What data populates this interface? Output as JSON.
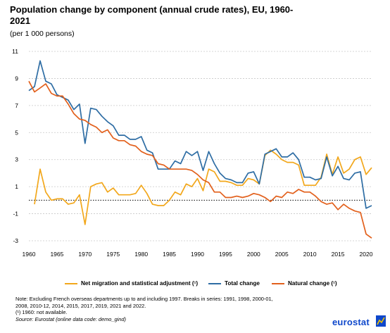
{
  "title": "Population change by component (annual crude rates), EU, 1960-2021",
  "subtitle": "(per 1 000 persons)",
  "notes": [
    "Note: Excluding French overseas departments up to and including 1997. Breaks in series: 1991, 1998, 2000-01,",
    "2008, 2010-12, 2014, 2015, 2017, 2019, 2021 and 2022.",
    "(¹) 1960: not available.",
    "Source: Eurostat (online data code: demo_gind)"
  ],
  "logo_text": "eurostat",
  "colors": {
    "net_migration": "#f2a71b",
    "total": "#2e6da4",
    "natural": "#e2601c",
    "grid": "#c8c8c8"
  },
  "chart_data": {
    "type": "line",
    "title": "Population change by component (annual crude rates), EU, 1960-2021",
    "ylabel": "(per 1 000 persons)",
    "xlim": [
      1960,
      2021
    ],
    "ylim": [
      -3,
      11
    ],
    "y_ticks": [
      -3,
      -1,
      1,
      3,
      5,
      7,
      9,
      11
    ],
    "x_ticks": [
      1960,
      1965,
      1970,
      1975,
      1980,
      1985,
      1990,
      1995,
      2000,
      2005,
      2010,
      2015,
      2020
    ],
    "grid": "horizontal dashed",
    "legend_position": "bottom",
    "x": [
      1960,
      1961,
      1962,
      1963,
      1964,
      1965,
      1966,
      1967,
      1968,
      1969,
      1970,
      1971,
      1972,
      1973,
      1974,
      1975,
      1976,
      1977,
      1978,
      1979,
      1980,
      1981,
      1982,
      1983,
      1984,
      1985,
      1986,
      1987,
      1988,
      1989,
      1990,
      1991,
      1992,
      1993,
      1994,
      1995,
      1996,
      1997,
      1998,
      1999,
      2000,
      2001,
      2002,
      2003,
      2004,
      2005,
      2006,
      2007,
      2008,
      2009,
      2010,
      2011,
      2012,
      2013,
      2014,
      2015,
      2016,
      2017,
      2018,
      2019,
      2020,
      2021
    ],
    "series": [
      {
        "name": "Net migration and statistical adjustment (¹)",
        "color": "#f2a71b",
        "values": [
          null,
          -0.3,
          2.3,
          0.6,
          0.0,
          0.1,
          0.1,
          -0.3,
          -0.2,
          0.4,
          -1.8,
          1.0,
          1.2,
          1.3,
          0.6,
          0.9,
          0.4,
          0.4,
          0.4,
          0.5,
          1.1,
          0.5,
          -0.3,
          -0.4,
          -0.4,
          0.0,
          0.6,
          0.4,
          1.2,
          1.0,
          1.6,
          0.7,
          2.3,
          2.1,
          1.4,
          1.4,
          1.3,
          1.1,
          1.1,
          1.6,
          1.5,
          1.2,
          3.3,
          3.7,
          3.4,
          3.0,
          2.8,
          2.8,
          2.6,
          1.1,
          1.1,
          1.1,
          1.7,
          3.4,
          1.9,
          3.2,
          2.0,
          2.3,
          3.0,
          3.2,
          1.9,
          2.4
        ]
      },
      {
        "name": "Total change",
        "color": "#2e6da4",
        "values": [
          8.1,
          8.4,
          10.3,
          8.8,
          8.6,
          7.8,
          7.6,
          7.4,
          6.7,
          7.1,
          4.2,
          6.8,
          6.7,
          6.2,
          5.8,
          5.5,
          4.8,
          4.8,
          4.5,
          4.5,
          4.7,
          3.7,
          3.5,
          2.3,
          2.3,
          2.3,
          2.9,
          2.7,
          3.6,
          3.3,
          3.6,
          2.2,
          3.6,
          2.7,
          2.0,
          1.6,
          1.5,
          1.3,
          1.3,
          2.0,
          2.1,
          1.2,
          3.4,
          3.6,
          3.8,
          3.2,
          3.2,
          3.5,
          3.0,
          1.7,
          1.7,
          1.5,
          1.6,
          3.2,
          1.8,
          2.5,
          1.6,
          1.5,
          2.0,
          2.1,
          -0.6,
          -0.4
        ]
      },
      {
        "name": "Natural change (¹)",
        "color": "#e2601c",
        "values": [
          8.8,
          8.0,
          8.3,
          8.6,
          7.9,
          7.7,
          7.7,
          7.1,
          6.4,
          6.0,
          5.9,
          5.6,
          5.4,
          5.0,
          5.2,
          4.6,
          4.4,
          4.4,
          4.1,
          4.0,
          3.6,
          3.4,
          3.3,
          2.7,
          2.6,
          2.3,
          2.3,
          2.3,
          2.3,
          2.2,
          1.9,
          1.5,
          1.3,
          0.6,
          0.6,
          0.2,
          0.2,
          0.3,
          0.2,
          0.3,
          0.5,
          0.4,
          0.2,
          -0.1,
          0.3,
          0.2,
          0.6,
          0.5,
          0.8,
          0.6,
          0.6,
          0.3,
          -0.1,
          -0.3,
          -0.2,
          -0.7,
          -0.3,
          -0.6,
          -0.8,
          -0.9,
          -2.5,
          -2.8
        ]
      }
    ]
  }
}
